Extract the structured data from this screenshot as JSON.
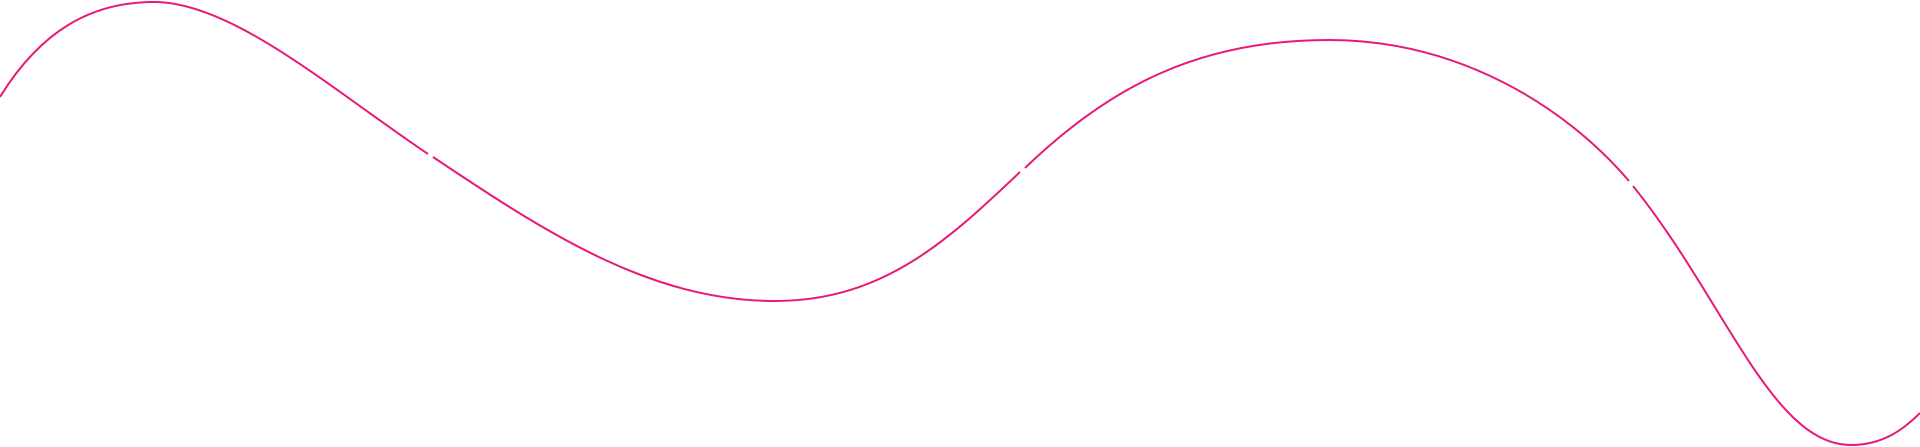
{
  "decoration": {
    "icon": "wave-line-icon",
    "stroke_color": "#e8197a"
  }
}
